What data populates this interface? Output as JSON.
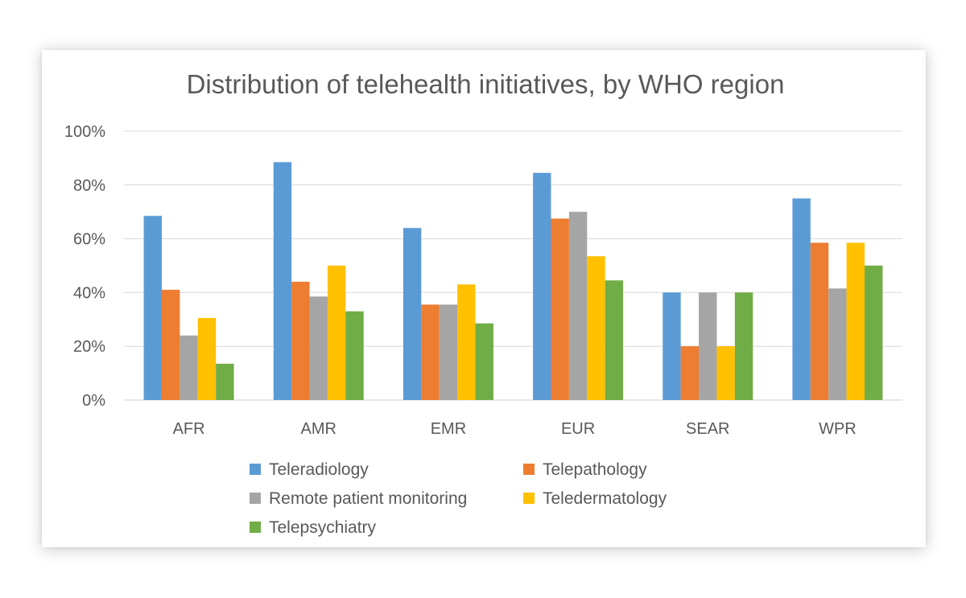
{
  "chart_data": {
    "type": "bar",
    "title": "Distribution of telehealth initiatives, by WHO region",
    "xlabel": "",
    "ylabel": "",
    "categories": [
      "AFR",
      "AMR",
      "EMR",
      "EUR",
      "SEAR",
      "WPR"
    ],
    "yticks": [
      "0%",
      "20%",
      "40%",
      "60%",
      "80%",
      "100%"
    ],
    "ylim": [
      0,
      100
    ],
    "grid": true,
    "legend_position": "bottom",
    "series": [
      {
        "name": "Teleradiology",
        "color": "#5B9BD5",
        "values": [
          68.5,
          88.5,
          64,
          84.5,
          40,
          75
        ]
      },
      {
        "name": "Telepathology",
        "color": "#ED7D31",
        "values": [
          41,
          44,
          35.5,
          67.5,
          20,
          58.5
        ]
      },
      {
        "name": "Remote patient monitoring",
        "color": "#A5A5A5",
        "values": [
          24,
          38.5,
          35.5,
          70,
          40,
          41.5
        ]
      },
      {
        "name": "Teledermatology",
        "color": "#FFC000",
        "values": [
          30.5,
          50,
          43,
          53.5,
          20,
          58.5
        ]
      },
      {
        "name": "Telepsychiatry",
        "color": "#70AD47",
        "values": [
          13.5,
          33,
          28.5,
          44.5,
          40,
          50
        ]
      }
    ]
  }
}
